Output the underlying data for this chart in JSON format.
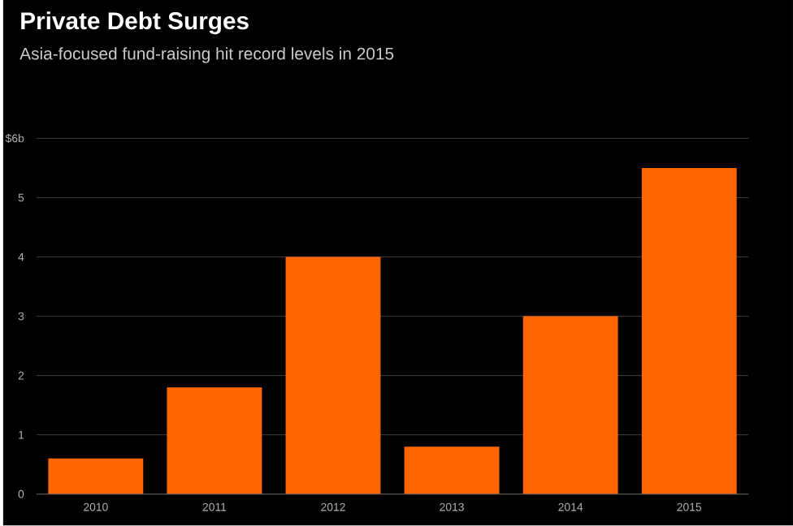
{
  "chart_data": {
    "type": "bar",
    "title": "Private Debt Surges",
    "subtitle": "Asia-focused fund-raising hit record levels in 2015",
    "categories": [
      "2010",
      "2011",
      "2012",
      "2013",
      "2014",
      "2015"
    ],
    "values": [
      0.6,
      1.8,
      4.0,
      0.8,
      3.0,
      5.5
    ],
    "color": "#ff6600",
    "ylim": [
      0,
      6
    ],
    "yticks": [
      0,
      1,
      2,
      3,
      4,
      5,
      {
        "value": 6,
        "label": "$6b"
      }
    ],
    "grid": "y"
  }
}
